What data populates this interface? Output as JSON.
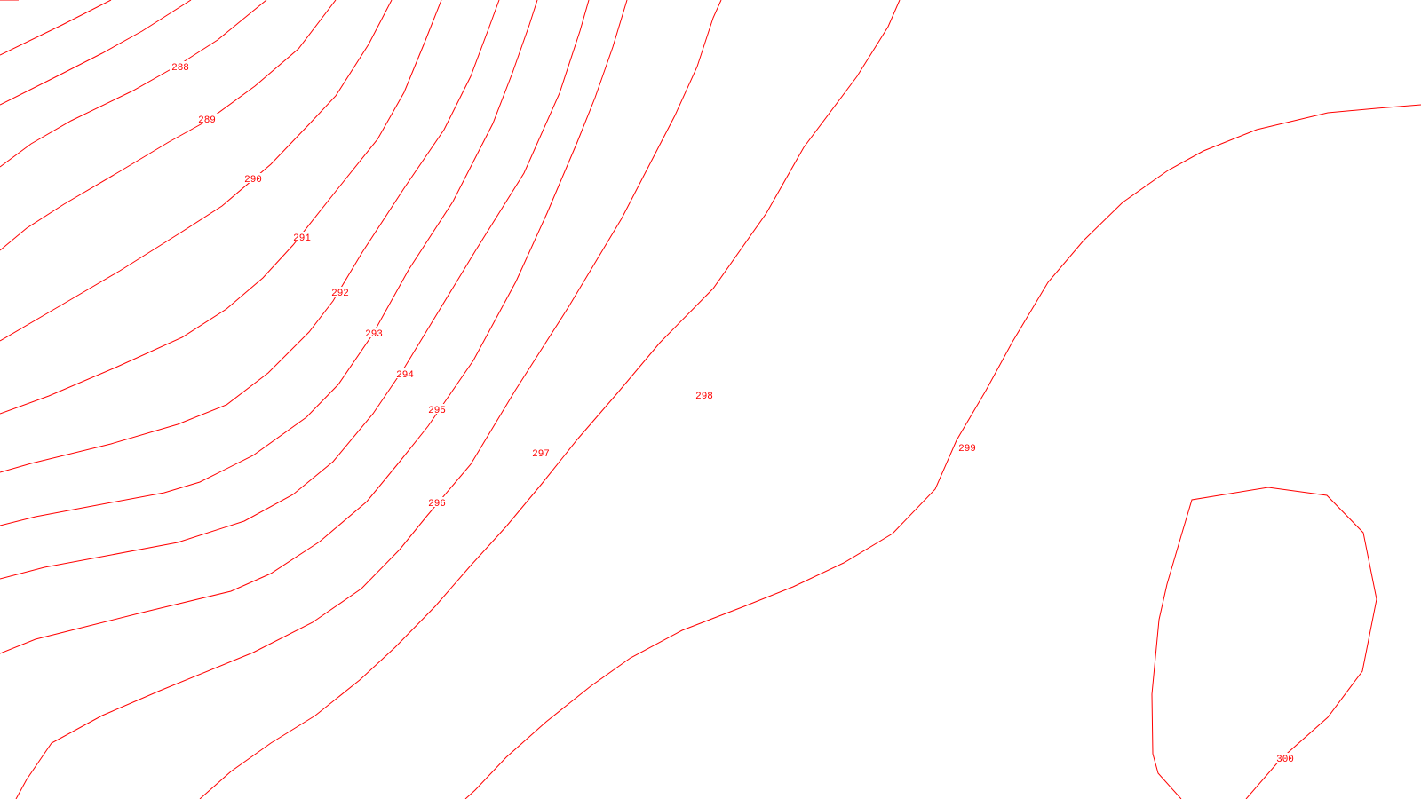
{
  "map": {
    "line_color": "#ff0000",
    "background": "#ffffff",
    "contour_labels": [
      "288",
      "289",
      "290",
      "291",
      "292",
      "293",
      "294",
      "295",
      "296",
      "297",
      "298",
      "299",
      "300"
    ]
  }
}
